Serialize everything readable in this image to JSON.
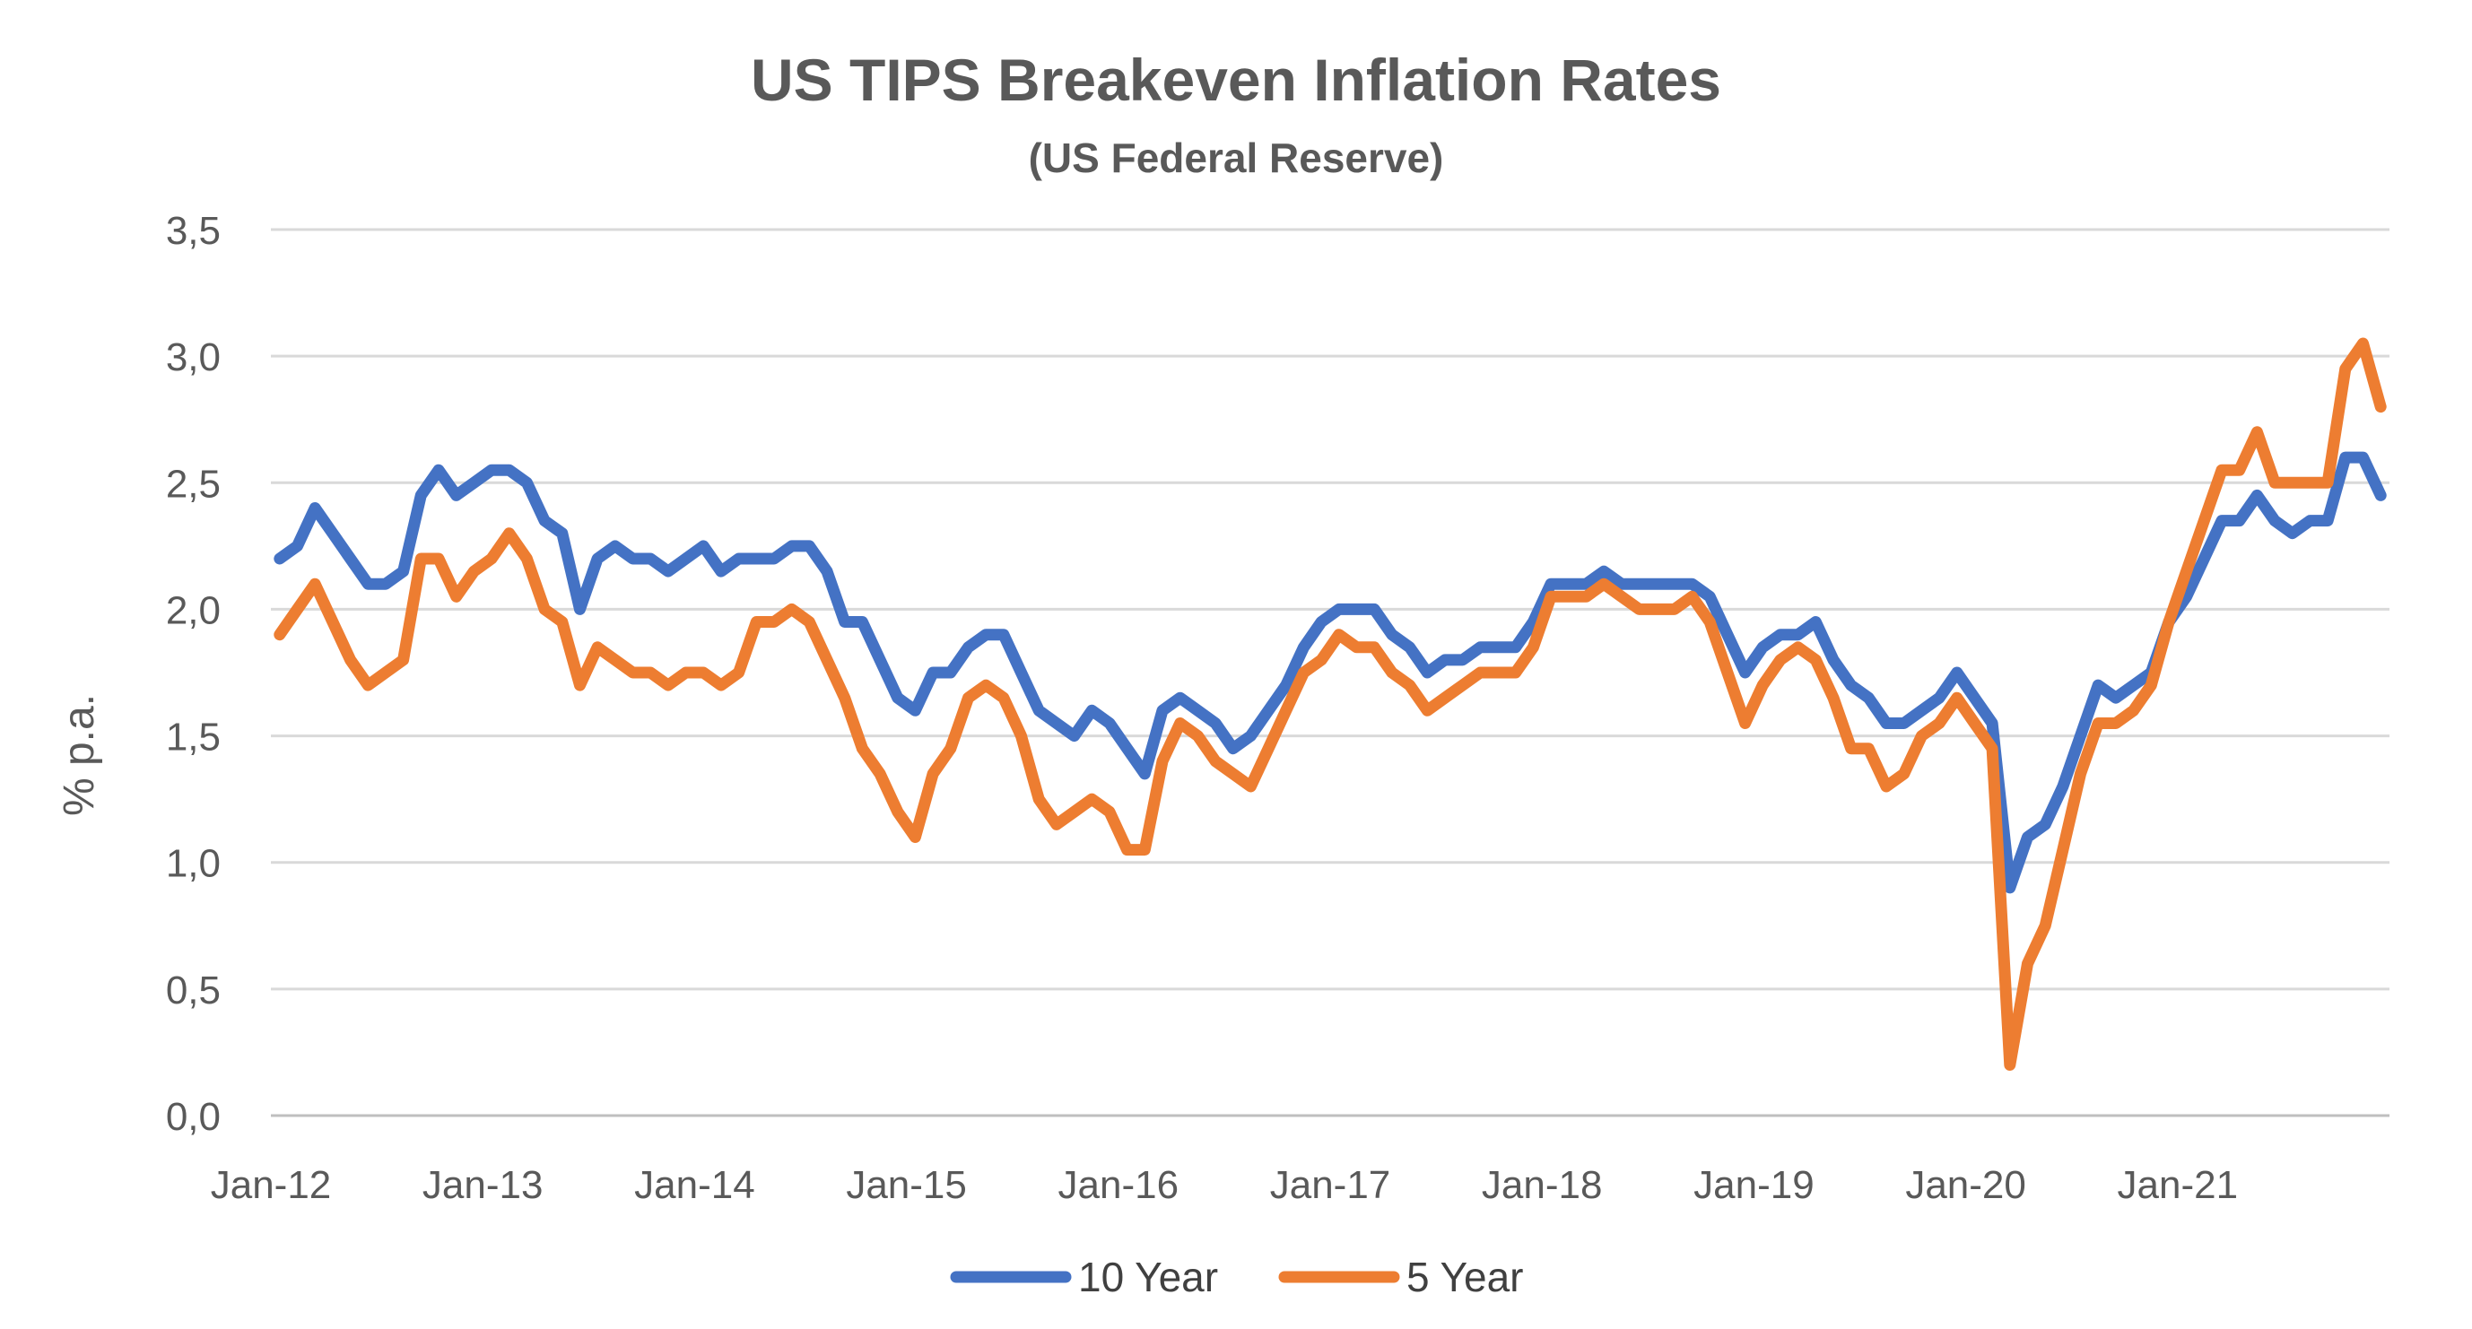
{
  "chart_data": {
    "type": "line",
    "title": "US TIPS Breakeven Inflation Rates",
    "subtitle": "(US Federal Reserve)",
    "xlabel": "",
    "ylabel": "% p.a.",
    "ylim": [
      0,
      3.5
    ],
    "yticks": [
      "0,0",
      "0,5",
      "1,0",
      "1,5",
      "2,0",
      "2,5",
      "3,0",
      "3,5"
    ],
    "xticks": [
      "Jan-12",
      "Jan-13",
      "Jan-14",
      "Jan-15",
      "Jan-16",
      "Jan-17",
      "Jan-18",
      "Jan-19",
      "Jan-20",
      "Jan-21"
    ],
    "x_range": [
      "2012-01",
      "2021-12"
    ],
    "grid": true,
    "legend_position": "bottom",
    "series": [
      {
        "name": "10 Year",
        "color": "#4472C4",
        "points": [
          [
            "2012-01",
            2.2
          ],
          [
            "2012-02",
            2.25
          ],
          [
            "2012-03",
            2.4
          ],
          [
            "2012-04",
            2.3
          ],
          [
            "2012-05",
            2.2
          ],
          [
            "2012-06",
            2.1
          ],
          [
            "2012-07",
            2.1
          ],
          [
            "2012-08",
            2.15
          ],
          [
            "2012-09",
            2.45
          ],
          [
            "2012-10",
            2.55
          ],
          [
            "2012-11",
            2.45
          ],
          [
            "2012-12",
            2.5
          ],
          [
            "2013-01",
            2.55
          ],
          [
            "2013-02",
            2.55
          ],
          [
            "2013-03",
            2.5
          ],
          [
            "2013-04",
            2.35
          ],
          [
            "2013-05",
            2.3
          ],
          [
            "2013-06",
            2.0
          ],
          [
            "2013-07",
            2.2
          ],
          [
            "2013-08",
            2.25
          ],
          [
            "2013-09",
            2.2
          ],
          [
            "2013-10",
            2.2
          ],
          [
            "2013-11",
            2.15
          ],
          [
            "2013-12",
            2.2
          ],
          [
            "2014-01",
            2.25
          ],
          [
            "2014-02",
            2.15
          ],
          [
            "2014-03",
            2.2
          ],
          [
            "2014-04",
            2.2
          ],
          [
            "2014-05",
            2.2
          ],
          [
            "2014-06",
            2.25
          ],
          [
            "2014-07",
            2.25
          ],
          [
            "2014-08",
            2.15
          ],
          [
            "2014-09",
            1.95
          ],
          [
            "2014-10",
            1.95
          ],
          [
            "2014-11",
            1.8
          ],
          [
            "2014-12",
            1.65
          ],
          [
            "2015-01",
            1.6
          ],
          [
            "2015-02",
            1.75
          ],
          [
            "2015-03",
            1.75
          ],
          [
            "2015-04",
            1.85
          ],
          [
            "2015-05",
            1.9
          ],
          [
            "2015-06",
            1.9
          ],
          [
            "2015-07",
            1.75
          ],
          [
            "2015-08",
            1.6
          ],
          [
            "2015-09",
            1.55
          ],
          [
            "2015-10",
            1.5
          ],
          [
            "2015-11",
            1.6
          ],
          [
            "2015-12",
            1.55
          ],
          [
            "2016-01",
            1.45
          ],
          [
            "2016-02",
            1.35
          ],
          [
            "2016-03",
            1.6
          ],
          [
            "2016-04",
            1.65
          ],
          [
            "2016-05",
            1.6
          ],
          [
            "2016-06",
            1.55
          ],
          [
            "2016-07",
            1.45
          ],
          [
            "2016-08",
            1.5
          ],
          [
            "2016-09",
            1.6
          ],
          [
            "2016-10",
            1.7
          ],
          [
            "2016-11",
            1.85
          ],
          [
            "2016-12",
            1.95
          ],
          [
            "2017-01",
            2.0
          ],
          [
            "2017-02",
            2.0
          ],
          [
            "2017-03",
            2.0
          ],
          [
            "2017-04",
            1.9
          ],
          [
            "2017-05",
            1.85
          ],
          [
            "2017-06",
            1.75
          ],
          [
            "2017-07",
            1.8
          ],
          [
            "2017-08",
            1.8
          ],
          [
            "2017-09",
            1.85
          ],
          [
            "2017-10",
            1.85
          ],
          [
            "2017-11",
            1.85
          ],
          [
            "2017-12",
            1.95
          ],
          [
            "2018-01",
            2.1
          ],
          [
            "2018-02",
            2.1
          ],
          [
            "2018-03",
            2.1
          ],
          [
            "2018-04",
            2.15
          ],
          [
            "2018-05",
            2.1
          ],
          [
            "2018-06",
            2.1
          ],
          [
            "2018-07",
            2.1
          ],
          [
            "2018-08",
            2.1
          ],
          [
            "2018-09",
            2.1
          ],
          [
            "2018-10",
            2.05
          ],
          [
            "2018-11",
            1.9
          ],
          [
            "2018-12",
            1.75
          ],
          [
            "2019-01",
            1.85
          ],
          [
            "2019-02",
            1.9
          ],
          [
            "2019-03",
            1.9
          ],
          [
            "2019-04",
            1.95
          ],
          [
            "2019-05",
            1.8
          ],
          [
            "2019-06",
            1.7
          ],
          [
            "2019-07",
            1.65
          ],
          [
            "2019-08",
            1.55
          ],
          [
            "2019-09",
            1.55
          ],
          [
            "2019-10",
            1.6
          ],
          [
            "2019-11",
            1.65
          ],
          [
            "2019-12",
            1.75
          ],
          [
            "2020-01",
            1.65
          ],
          [
            "2020-02",
            1.55
          ],
          [
            "2020-03",
            0.9
          ],
          [
            "2020-04",
            1.1
          ],
          [
            "2020-05",
            1.15
          ],
          [
            "2020-06",
            1.3
          ],
          [
            "2020-07",
            1.5
          ],
          [
            "2020-08",
            1.7
          ],
          [
            "2020-09",
            1.65
          ],
          [
            "2020-10",
            1.7
          ],
          [
            "2020-11",
            1.75
          ],
          [
            "2020-12",
            1.95
          ],
          [
            "2021-01",
            2.05
          ],
          [
            "2021-02",
            2.2
          ],
          [
            "2021-03",
            2.35
          ],
          [
            "2021-04",
            2.35
          ],
          [
            "2021-05",
            2.45
          ],
          [
            "2021-06",
            2.35
          ],
          [
            "2021-07",
            2.3
          ],
          [
            "2021-08",
            2.35
          ],
          [
            "2021-09",
            2.35
          ],
          [
            "2021-10",
            2.6
          ],
          [
            "2021-11",
            2.6
          ],
          [
            "2021-12",
            2.45
          ]
        ]
      },
      {
        "name": "5 Year",
        "color": "#ED7D31",
        "points": [
          [
            "2012-01",
            1.9
          ],
          [
            "2012-02",
            2.0
          ],
          [
            "2012-03",
            2.1
          ],
          [
            "2012-04",
            1.95
          ],
          [
            "2012-05",
            1.8
          ],
          [
            "2012-06",
            1.7
          ],
          [
            "2012-07",
            1.75
          ],
          [
            "2012-08",
            1.8
          ],
          [
            "2012-09",
            2.2
          ],
          [
            "2012-10",
            2.2
          ],
          [
            "2012-11",
            2.05
          ],
          [
            "2012-12",
            2.15
          ],
          [
            "2013-01",
            2.2
          ],
          [
            "2013-02",
            2.3
          ],
          [
            "2013-03",
            2.2
          ],
          [
            "2013-04",
            2.0
          ],
          [
            "2013-05",
            1.95
          ],
          [
            "2013-06",
            1.7
          ],
          [
            "2013-07",
            1.85
          ],
          [
            "2013-08",
            1.8
          ],
          [
            "2013-09",
            1.75
          ],
          [
            "2013-10",
            1.75
          ],
          [
            "2013-11",
            1.7
          ],
          [
            "2013-12",
            1.75
          ],
          [
            "2014-01",
            1.75
          ],
          [
            "2014-02",
            1.7
          ],
          [
            "2014-03",
            1.75
          ],
          [
            "2014-04",
            1.95
          ],
          [
            "2014-05",
            1.95
          ],
          [
            "2014-06",
            2.0
          ],
          [
            "2014-07",
            1.95
          ],
          [
            "2014-08",
            1.8
          ],
          [
            "2014-09",
            1.65
          ],
          [
            "2014-10",
            1.45
          ],
          [
            "2014-11",
            1.35
          ],
          [
            "2014-12",
            1.2
          ],
          [
            "2015-01",
            1.1
          ],
          [
            "2015-02",
            1.35
          ],
          [
            "2015-03",
            1.45
          ],
          [
            "2015-04",
            1.65
          ],
          [
            "2015-05",
            1.7
          ],
          [
            "2015-06",
            1.65
          ],
          [
            "2015-07",
            1.5
          ],
          [
            "2015-08",
            1.25
          ],
          [
            "2015-09",
            1.15
          ],
          [
            "2015-10",
            1.2
          ],
          [
            "2015-11",
            1.25
          ],
          [
            "2015-12",
            1.2
          ],
          [
            "2016-01",
            1.05
          ],
          [
            "2016-02",
            1.05
          ],
          [
            "2016-03",
            1.4
          ],
          [
            "2016-04",
            1.55
          ],
          [
            "2016-05",
            1.5
          ],
          [
            "2016-06",
            1.4
          ],
          [
            "2016-07",
            1.35
          ],
          [
            "2016-08",
            1.3
          ],
          [
            "2016-09",
            1.45
          ],
          [
            "2016-10",
            1.6
          ],
          [
            "2016-11",
            1.75
          ],
          [
            "2016-12",
            1.8
          ],
          [
            "2017-01",
            1.9
          ],
          [
            "2017-02",
            1.85
          ],
          [
            "2017-03",
            1.85
          ],
          [
            "2017-04",
            1.75
          ],
          [
            "2017-05",
            1.7
          ],
          [
            "2017-06",
            1.6
          ],
          [
            "2017-07",
            1.65
          ],
          [
            "2017-08",
            1.7
          ],
          [
            "2017-09",
            1.75
          ],
          [
            "2017-10",
            1.75
          ],
          [
            "2017-11",
            1.75
          ],
          [
            "2017-12",
            1.85
          ],
          [
            "2018-01",
            2.05
          ],
          [
            "2018-02",
            2.05
          ],
          [
            "2018-03",
            2.05
          ],
          [
            "2018-04",
            2.1
          ],
          [
            "2018-05",
            2.05
          ],
          [
            "2018-06",
            2.0
          ],
          [
            "2018-07",
            2.0
          ],
          [
            "2018-08",
            2.0
          ],
          [
            "2018-09",
            2.05
          ],
          [
            "2018-10",
            1.95
          ],
          [
            "2018-11",
            1.75
          ],
          [
            "2018-12",
            1.55
          ],
          [
            "2019-01",
            1.7
          ],
          [
            "2019-02",
            1.8
          ],
          [
            "2019-03",
            1.85
          ],
          [
            "2019-04",
            1.8
          ],
          [
            "2019-05",
            1.65
          ],
          [
            "2019-06",
            1.45
          ],
          [
            "2019-07",
            1.45
          ],
          [
            "2019-08",
            1.3
          ],
          [
            "2019-09",
            1.35
          ],
          [
            "2019-10",
            1.5
          ],
          [
            "2019-11",
            1.55
          ],
          [
            "2019-12",
            1.65
          ],
          [
            "2020-01",
            1.55
          ],
          [
            "2020-02",
            1.45
          ],
          [
            "2020-03",
            0.2
          ],
          [
            "2020-04",
            0.6
          ],
          [
            "2020-05",
            0.75
          ],
          [
            "2020-06",
            1.05
          ],
          [
            "2020-07",
            1.35
          ],
          [
            "2020-08",
            1.55
          ],
          [
            "2020-09",
            1.55
          ],
          [
            "2020-10",
            1.6
          ],
          [
            "2020-11",
            1.7
          ],
          [
            "2020-12",
            1.95
          ],
          [
            "2021-01",
            2.15
          ],
          [
            "2021-02",
            2.35
          ],
          [
            "2021-03",
            2.55
          ],
          [
            "2021-04",
            2.55
          ],
          [
            "2021-05",
            2.7
          ],
          [
            "2021-06",
            2.5
          ],
          [
            "2021-07",
            2.5
          ],
          [
            "2021-08",
            2.5
          ],
          [
            "2021-09",
            2.5
          ],
          [
            "2021-10",
            2.95
          ],
          [
            "2021-11",
            3.05
          ],
          [
            "2021-12",
            2.8
          ]
        ]
      }
    ]
  }
}
